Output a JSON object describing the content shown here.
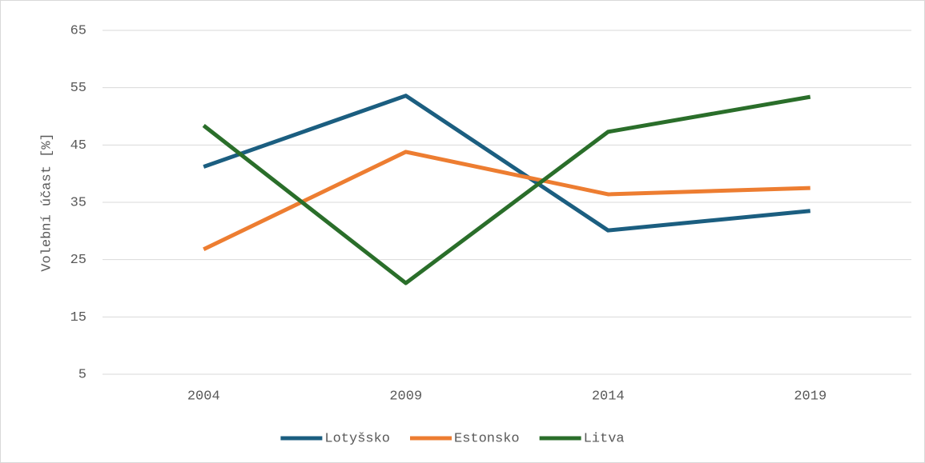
{
  "chart_data": {
    "type": "line",
    "y_label": "Volební účast [%]",
    "categories": [
      "2004",
      "2009",
      "2014",
      "2019"
    ],
    "series": [
      {
        "name": "Lotyšsko",
        "color": "#1b5e80",
        "values": [
          41.2,
          53.6,
          30.1,
          33.5
        ]
      },
      {
        "name": "Estonsko",
        "color": "#ed7d31",
        "values": [
          26.8,
          43.8,
          36.4,
          37.5
        ]
      },
      {
        "name": "Litva",
        "color": "#2a6e2a",
        "values": [
          48.4,
          20.9,
          47.3,
          53.4
        ]
      }
    ],
    "ylim": [
      5,
      65
    ],
    "yticks": [
      5,
      15,
      25,
      35,
      45,
      55,
      65
    ],
    "grid": true,
    "legend": "bottom"
  }
}
